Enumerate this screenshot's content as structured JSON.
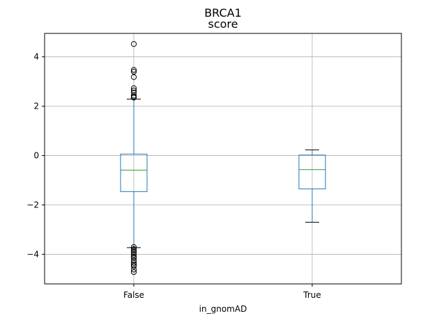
{
  "chart_data": {
    "type": "box",
    "title": "BRCA1",
    "subtitle": "score",
    "xlabel": "in_gnomAD",
    "ylabel": "",
    "categories": [
      "False",
      "True"
    ],
    "ylim": [
      -5.2,
      4.95
    ],
    "yticks": [
      -4,
      -2,
      0,
      2,
      4
    ],
    "grid": true,
    "boxes": [
      {
        "category": "False",
        "whisker_low": -3.73,
        "q1": -1.46,
        "median": -0.59,
        "q3": 0.06,
        "whisker_high": 2.29,
        "outliers": [
          4.52,
          3.47,
          3.4,
          3.18,
          2.73,
          2.64,
          2.55,
          2.43,
          2.38,
          2.35,
          -3.71,
          -3.79,
          -3.86,
          -3.93,
          -4.02,
          -4.1,
          -4.15,
          -4.25,
          -4.35,
          -4.42,
          -4.48,
          -4.62,
          -4.72
        ]
      },
      {
        "category": "True",
        "whisker_low": -2.7,
        "q1": -1.35,
        "median": -0.57,
        "q3": 0.02,
        "whisker_high": 0.23,
        "outliers": []
      }
    ],
    "colors": {
      "box": "#1f77b4",
      "median": "#2ca02c",
      "whisker_cap": "#000000",
      "outlier": "#000000",
      "grid": "#b0b0b0",
      "axes": "#000000"
    }
  }
}
